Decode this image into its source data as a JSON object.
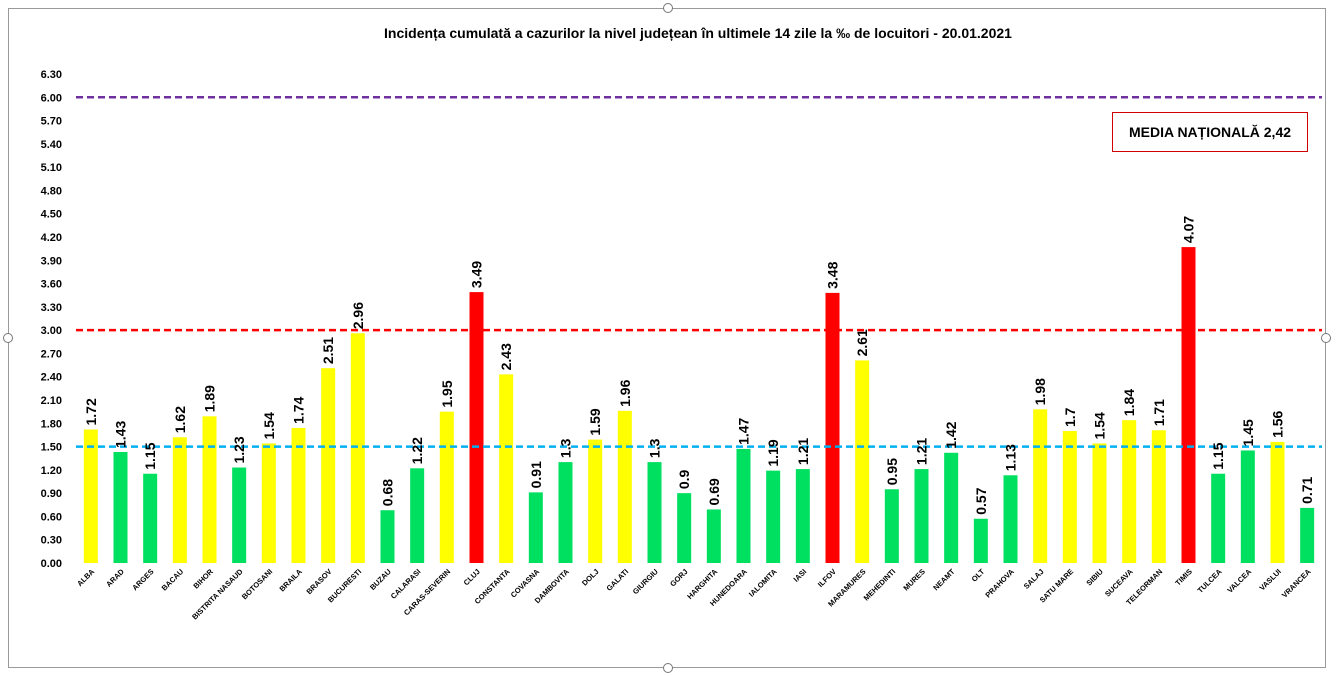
{
  "chart_data": {
    "type": "bar",
    "title": "Incidența cumulată a cazurilor la nivel județean în ultimele 14 zile la ‰ de locuitori - 20.01.2021",
    "xlabel": "",
    "ylabel": "",
    "ylim": [
      0,
      6.3
    ],
    "yticks": [
      0.0,
      0.3,
      0.6,
      0.9,
      1.2,
      1.5,
      1.8,
      2.1,
      2.4,
      2.7,
      3.0,
      3.3,
      3.6,
      3.9,
      4.2,
      4.5,
      4.8,
      5.1,
      5.4,
      5.7,
      6.0,
      6.3
    ],
    "grid": false,
    "categories": [
      "ALBA",
      "ARAD",
      "ARGES",
      "BACAU",
      "BIHOR",
      "BISTRITA NASAUD",
      "BOTOSANI",
      "BRAILA",
      "BRASOV",
      "BUCURESTI",
      "BUZAU",
      "CALARASI",
      "CARAS-SEVERIN",
      "CLUJ",
      "CONSTANTA",
      "COVASNA",
      "DAMBOVITA",
      "DOLJ",
      "GALATI",
      "GIURGIU",
      "GORJ",
      "HARGHITA",
      "HUNEDOARA",
      "IALOMITA",
      "IASI",
      "ILFOV",
      "MARAMURES",
      "MEHEDINTI",
      "MURES",
      "NEAMT",
      "OLT",
      "PRAHOVA",
      "SALAJ",
      "SATU MARE",
      "SIBIU",
      "SUCEAVA",
      "TELEORMAN",
      "TIMIS",
      "TULCEA",
      "VALCEA",
      "VASLUI",
      "VRANCEA"
    ],
    "values": [
      1.72,
      1.43,
      1.15,
      1.62,
      1.89,
      1.23,
      1.54,
      1.74,
      2.51,
      2.96,
      0.68,
      1.22,
      1.95,
      3.49,
      2.43,
      0.91,
      1.3,
      1.59,
      1.96,
      1.3,
      0.9,
      0.69,
      1.47,
      1.19,
      1.21,
      3.48,
      2.61,
      0.95,
      1.21,
      1.42,
      0.57,
      1.13,
      1.98,
      1.7,
      1.54,
      1.84,
      1.71,
      4.07,
      1.15,
      1.45,
      1.56,
      0.71
    ],
    "value_labels": [
      "1.72",
      "1.43",
      "1.15",
      "1.62",
      "1.89",
      "1.23",
      "1.54",
      "1.74",
      "2.51",
      "2.96",
      "0.68",
      "1.22",
      "1.95",
      "3.49",
      "2.43",
      "0.91",
      "1.3",
      "1.59",
      "1.96",
      "1.3",
      "0.9",
      "0.69",
      "1.47",
      "1.19",
      "1.21",
      "3.48",
      "2.61",
      "0.95",
      "1.21",
      "1.42",
      "0.57",
      "1.13",
      "1.98",
      "1.7",
      "1.54",
      "1.84",
      "1.71",
      "4.07",
      "1.15",
      "1.45",
      "1.56",
      "0.71"
    ],
    "bar_colors": [
      "#ffff00",
      "#00e060",
      "#00e060",
      "#ffff00",
      "#ffff00",
      "#00e060",
      "#ffff00",
      "#ffff00",
      "#ffff00",
      "#ffff00",
      "#00e060",
      "#00e060",
      "#ffff00",
      "#ff0000",
      "#ffff00",
      "#00e060",
      "#00e060",
      "#ffff00",
      "#ffff00",
      "#00e060",
      "#00e060",
      "#00e060",
      "#00e060",
      "#00e060",
      "#00e060",
      "#ff0000",
      "#ffff00",
      "#00e060",
      "#00e060",
      "#00e060",
      "#00e060",
      "#00e060",
      "#ffff00",
      "#ffff00",
      "#ffff00",
      "#ffff00",
      "#ffff00",
      "#ff0000",
      "#00e060",
      "#00e060",
      "#ffff00",
      "#00e060"
    ],
    "reference_lines": [
      {
        "value": 6.0,
        "color": "#7030a0"
      },
      {
        "value": 3.0,
        "color": "#ff0000"
      },
      {
        "value": 1.5,
        "color": "#00b0f0"
      }
    ],
    "annotation": "MEDIA NAȚIONALĂ 2,42"
  }
}
